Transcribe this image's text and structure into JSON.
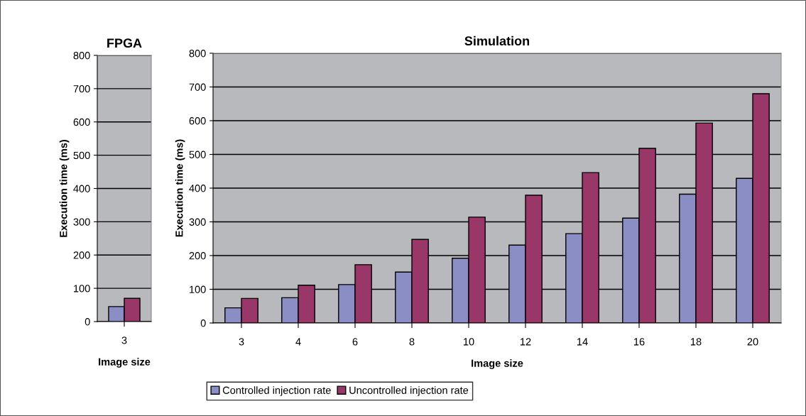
{
  "chart_data": [
    {
      "type": "bar",
      "title": "FPGA",
      "xlabel": "Image size",
      "ylabel": "Execution time (ms)",
      "categories": [
        "3"
      ],
      "series": [
        {
          "color": "#8b8ec4",
          "values": [
            45
          ]
        },
        {
          "color": "#993769",
          "values": [
            70
          ]
        }
      ],
      "ylim": [
        0,
        800
      ],
      "yticks": [
        0,
        100,
        200,
        300,
        400,
        500,
        600,
        700,
        800
      ],
      "grid": "y"
    },
    {
      "type": "bar",
      "title": "Simulation",
      "xlabel": "Image size",
      "ylabel": "Execution time (ms)",
      "categories": [
        "3",
        "4",
        "6",
        "8",
        "10",
        "12",
        "14",
        "16",
        "18",
        "20"
      ],
      "series": [
        {
          "name": "Controlled injection rate",
          "color": "#8b8ec4",
          "values": [
            45,
            75,
            114,
            151,
            192,
            231,
            265,
            311,
            382,
            429
          ]
        },
        {
          "name": "Uncontrolled injection rate",
          "color": "#993769",
          "values": [
            73,
            112,
            173,
            248,
            314,
            379,
            446,
            518,
            593,
            680
          ]
        }
      ],
      "ylim": [
        0,
        800
      ],
      "yticks": [
        0,
        100,
        200,
        300,
        400,
        500,
        600,
        700,
        800
      ],
      "grid": "y",
      "legend": "bottom"
    }
  ]
}
